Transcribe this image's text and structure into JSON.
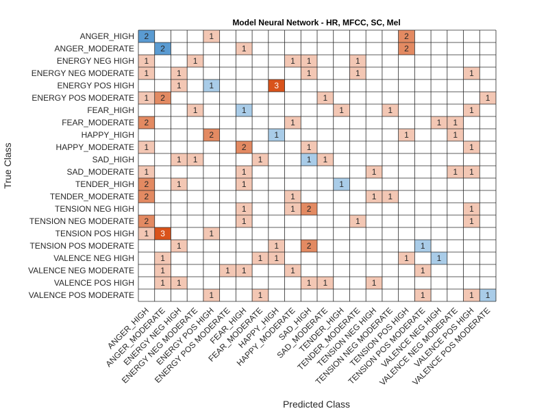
{
  "chart_data": {
    "type": "heatmap",
    "title": "Model  Neural Network - HR, MFCC, SC, Mel",
    "xlabel": "Predicted Class",
    "ylabel": "True Class",
    "classes": [
      "ANGER_HIGH",
      "ANGER_MODERATE",
      "ENERGY NEG HIGH",
      "ENERGY NEG MODERATE",
      "ENERGY POS HIGH",
      "ENERGY POS MODERATE",
      "FEAR_HIGH",
      "FEAR_MODERATE",
      "HAPPY_HIGH",
      "HAPPY_MODERATE",
      "SAD_HIGH",
      "SAD_MODERATE",
      "TENDER_HIGH",
      "TENDER_MODERATE",
      "TENSION NEG HIGH",
      "TENSION NEG MODERATE",
      "TENSION POS HIGH",
      "TENSION POS MODERATE",
      "VALENCE NEG HIGH",
      "VALENCE NEG MODERATE",
      "VALENCE POS HIGH",
      "VALENCE POS MODERATE"
    ],
    "matrix": [
      [
        2,
        0,
        0,
        0,
        1,
        0,
        0,
        0,
        0,
        0,
        0,
        0,
        0,
        0,
        0,
        0,
        2,
        0,
        0,
        0,
        0,
        0
      ],
      [
        0,
        2,
        0,
        0,
        0,
        0,
        1,
        0,
        0,
        0,
        0,
        0,
        0,
        0,
        0,
        0,
        2,
        0,
        0,
        0,
        0,
        0
      ],
      [
        1,
        0,
        0,
        1,
        0,
        0,
        0,
        0,
        0,
        1,
        1,
        0,
        0,
        1,
        0,
        0,
        0,
        0,
        0,
        0,
        0,
        0
      ],
      [
        1,
        0,
        1,
        0,
        0,
        0,
        0,
        0,
        0,
        0,
        1,
        0,
        0,
        1,
        0,
        0,
        0,
        0,
        0,
        0,
        1,
        0
      ],
      [
        0,
        0,
        1,
        0,
        1,
        0,
        0,
        0,
        3,
        0,
        0,
        0,
        0,
        0,
        0,
        0,
        0,
        0,
        0,
        0,
        0,
        0
      ],
      [
        1,
        2,
        0,
        0,
        0,
        0,
        0,
        0,
        0,
        0,
        0,
        1,
        0,
        0,
        0,
        0,
        0,
        0,
        0,
        0,
        0,
        1
      ],
      [
        0,
        0,
        0,
        1,
        0,
        0,
        1,
        0,
        0,
        0,
        0,
        0,
        1,
        0,
        0,
        1,
        0,
        0,
        0,
        0,
        1,
        0
      ],
      [
        2,
        0,
        0,
        0,
        0,
        0,
        0,
        0,
        0,
        1,
        0,
        0,
        0,
        0,
        0,
        0,
        0,
        0,
        1,
        1,
        0,
        0
      ],
      [
        0,
        0,
        0,
        0,
        2,
        0,
        0,
        0,
        1,
        0,
        0,
        0,
        0,
        0,
        0,
        0,
        1,
        0,
        0,
        1,
        0,
        0
      ],
      [
        1,
        0,
        0,
        0,
        0,
        0,
        2,
        0,
        0,
        0,
        1,
        0,
        0,
        0,
        0,
        0,
        0,
        0,
        0,
        0,
        1,
        0
      ],
      [
        0,
        0,
        1,
        1,
        0,
        0,
        0,
        1,
        0,
        0,
        1,
        1,
        0,
        0,
        0,
        0,
        0,
        0,
        0,
        0,
        0,
        0
      ],
      [
        1,
        0,
        0,
        0,
        0,
        0,
        1,
        0,
        0,
        0,
        0,
        0,
        0,
        0,
        1,
        0,
        0,
        0,
        0,
        1,
        1,
        0
      ],
      [
        2,
        0,
        1,
        0,
        0,
        0,
        1,
        0,
        0,
        0,
        0,
        0,
        1,
        0,
        0,
        0,
        0,
        0,
        0,
        0,
        0,
        0
      ],
      [
        2,
        0,
        0,
        0,
        0,
        0,
        0,
        0,
        0,
        1,
        0,
        0,
        0,
        0,
        1,
        1,
        0,
        0,
        0,
        0,
        0,
        0
      ],
      [
        0,
        0,
        0,
        0,
        0,
        0,
        1,
        0,
        0,
        1,
        2,
        0,
        0,
        0,
        0,
        0,
        0,
        0,
        0,
        0,
        1,
        0
      ],
      [
        2,
        0,
        0,
        0,
        0,
        0,
        1,
        0,
        0,
        0,
        0,
        0,
        0,
        1,
        0,
        0,
        0,
        0,
        0,
        0,
        1,
        0
      ],
      [
        1,
        3,
        0,
        0,
        1,
        0,
        0,
        0,
        0,
        0,
        0,
        0,
        0,
        0,
        0,
        0,
        0,
        0,
        0,
        0,
        0,
        0
      ],
      [
        0,
        0,
        1,
        0,
        0,
        0,
        0,
        0,
        1,
        0,
        2,
        0,
        0,
        0,
        0,
        0,
        0,
        1,
        0,
        0,
        0,
        0
      ],
      [
        0,
        1,
        0,
        0,
        0,
        0,
        0,
        1,
        1,
        0,
        0,
        0,
        0,
        0,
        0,
        0,
        1,
        0,
        1,
        0,
        0,
        0
      ],
      [
        0,
        1,
        0,
        0,
        0,
        1,
        1,
        0,
        0,
        1,
        0,
        0,
        0,
        0,
        0,
        0,
        0,
        1,
        0,
        0,
        0,
        0
      ],
      [
        0,
        1,
        1,
        0,
        0,
        0,
        0,
        0,
        0,
        0,
        1,
        1,
        0,
        0,
        1,
        0,
        0,
        0,
        0,
        0,
        0,
        0
      ],
      [
        0,
        0,
        0,
        0,
        1,
        0,
        0,
        1,
        0,
        0,
        0,
        0,
        0,
        0,
        0,
        0,
        0,
        1,
        0,
        0,
        1,
        1
      ]
    ],
    "grid": true,
    "colors": {
      "diag_1": "#a9cce8",
      "diag_2": "#5a9bd2",
      "off_1": "#f3c7b4",
      "off_2": "#e38a62",
      "off_3": "#d9531b",
      "text_dark": "#262626",
      "text_light": "#ffffff",
      "grid": "#262626"
    }
  }
}
